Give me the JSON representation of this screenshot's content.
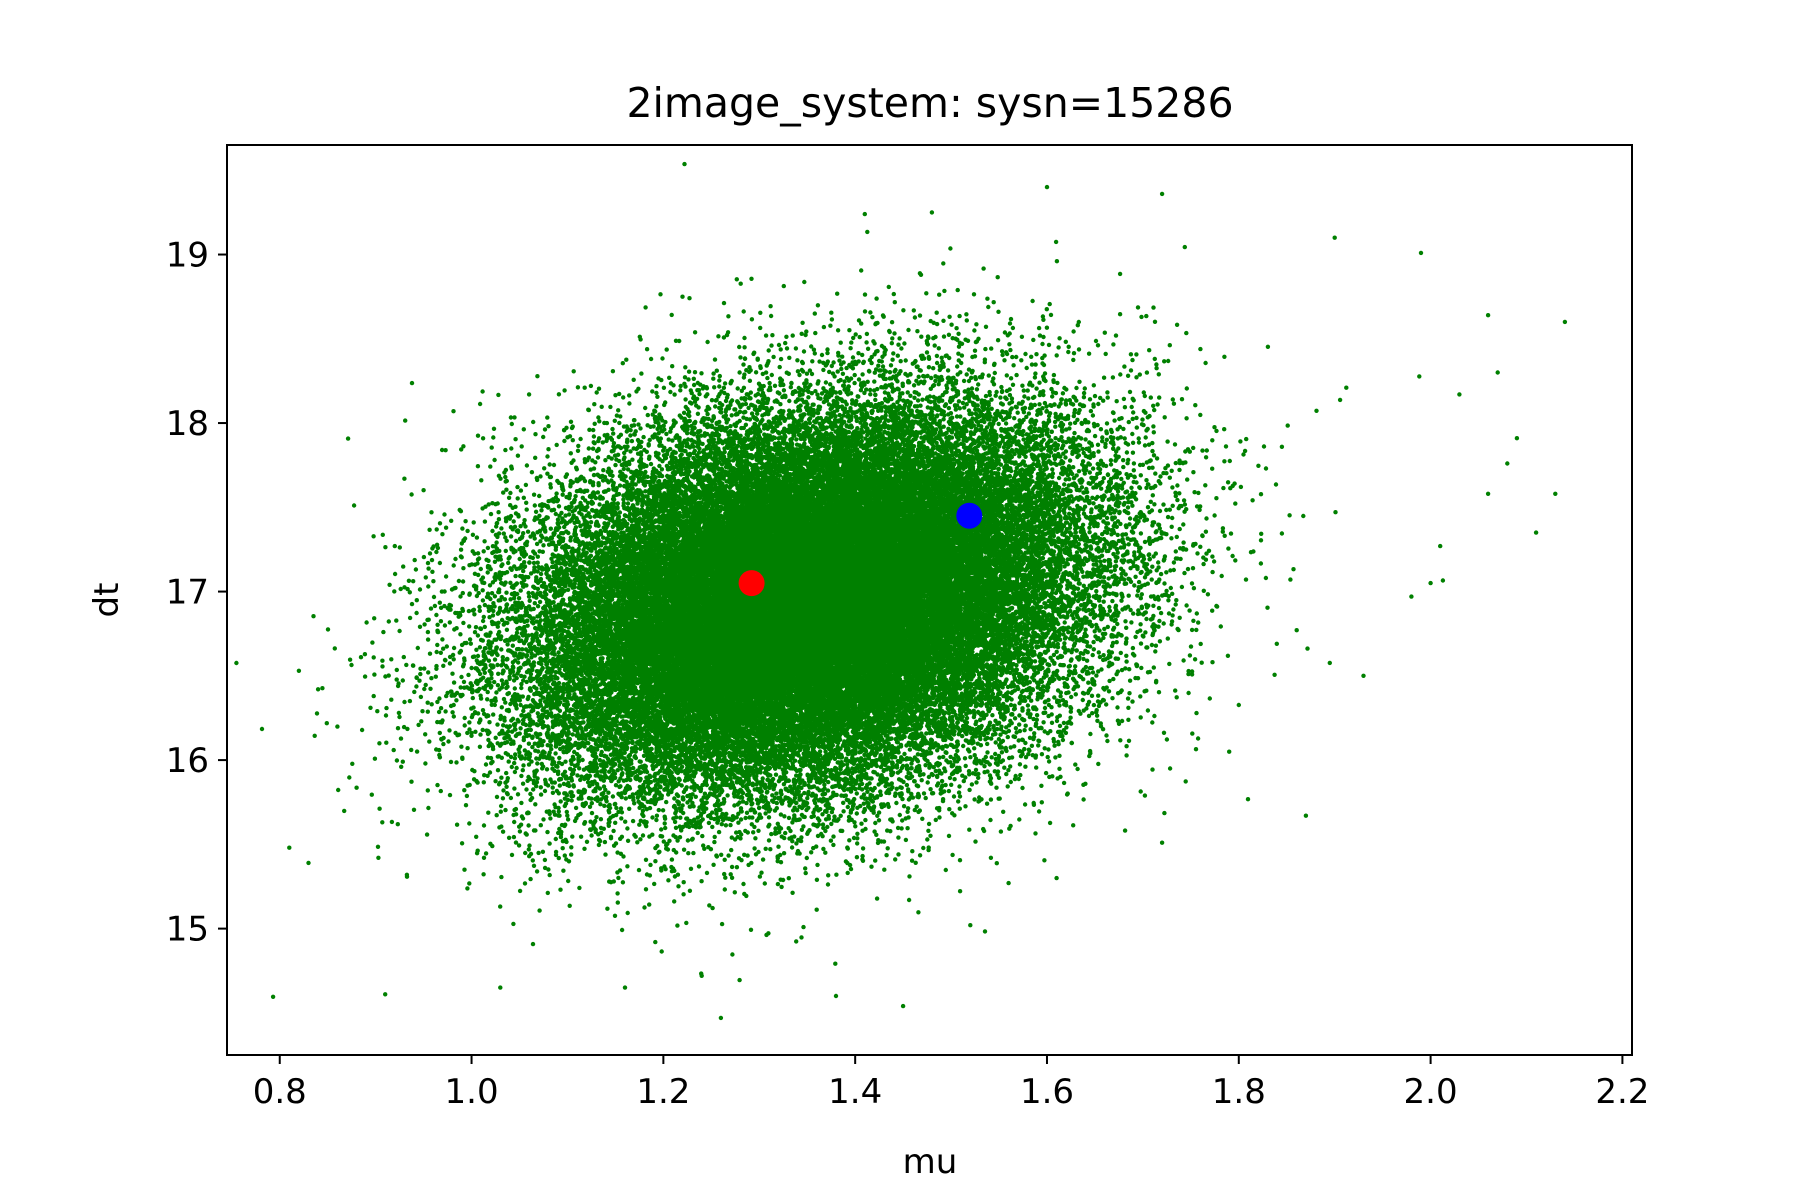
{
  "chart_data": {
    "type": "scatter",
    "title": "2image_system: sysn=15286",
    "xlabel": "mu",
    "ylabel": "dt",
    "xlim": [
      0.745,
      2.21
    ],
    "ylim": [
      14.25,
      19.65
    ],
    "xticks": [
      0.8,
      1.0,
      1.2,
      1.4,
      1.6,
      1.8,
      2.0,
      2.2
    ],
    "xtick_labels": [
      "0.8",
      "1.0",
      "1.2",
      "1.4",
      "1.6",
      "1.8",
      "2.0",
      "2.2"
    ],
    "yticks": [
      15,
      16,
      17,
      18,
      19
    ],
    "ytick_labels": [
      "15",
      "16",
      "17",
      "18",
      "19"
    ],
    "grid": false,
    "legend": "none",
    "series": [
      {
        "color": "#008000",
        "distribution": {
          "mean": [
            1.35,
            16.95
          ],
          "std": [
            0.14,
            0.55
          ],
          "correlation": 0.25,
          "count": 60000
        },
        "outliers": [
          [
            0.81,
            15.48
          ],
          [
            0.83,
            15.39
          ],
          [
            0.82,
            16.53
          ],
          [
            0.84,
            16.42
          ],
          [
            0.91,
            14.61
          ],
          [
            1.16,
            14.65
          ],
          [
            1.26,
            14.47
          ],
          [
            1.38,
            14.6
          ],
          [
            1.45,
            14.54
          ],
          [
            1.24,
            14.72
          ],
          [
            1.6,
            19.4
          ],
          [
            1.72,
            19.36
          ],
          [
            1.48,
            19.25
          ],
          [
            1.41,
            19.24
          ],
          [
            1.9,
            19.1
          ],
          [
            1.99,
            19.01
          ],
          [
            2.06,
            18.64
          ],
          [
            2.14,
            18.6
          ],
          [
            2.07,
            18.3
          ],
          [
            2.03,
            18.17
          ],
          [
            2.08,
            17.76
          ],
          [
            2.09,
            17.91
          ],
          [
            2.13,
            17.58
          ],
          [
            2.11,
            17.35
          ],
          [
            2.06,
            17.58
          ],
          [
            2.01,
            17.27
          ],
          [
            2.0,
            17.05
          ],
          [
            1.98,
            16.97
          ],
          [
            1.93,
            16.5
          ],
          [
            1.87,
            15.67
          ],
          [
            1.79,
            16.05
          ],
          [
            1.56,
            15.27
          ],
          [
            1.61,
            15.3
          ],
          [
            1.72,
            15.51
          ],
          [
            1.52,
            15.02
          ],
          [
            0.93,
            17.67
          ],
          [
            0.92,
            17.27
          ],
          [
            1.22,
            18.75
          ],
          [
            1.06,
            18.17
          ],
          [
            1.03,
            14.65
          ]
        ]
      },
      {
        "name": "",
        "color": "#ff0000",
        "points": [
          [
            1.292,
            17.05
          ]
        ]
      },
      {
        "name": "",
        "color": "#0000ff",
        "points": [
          [
            1.519,
            17.45
          ]
        ]
      }
    ]
  }
}
